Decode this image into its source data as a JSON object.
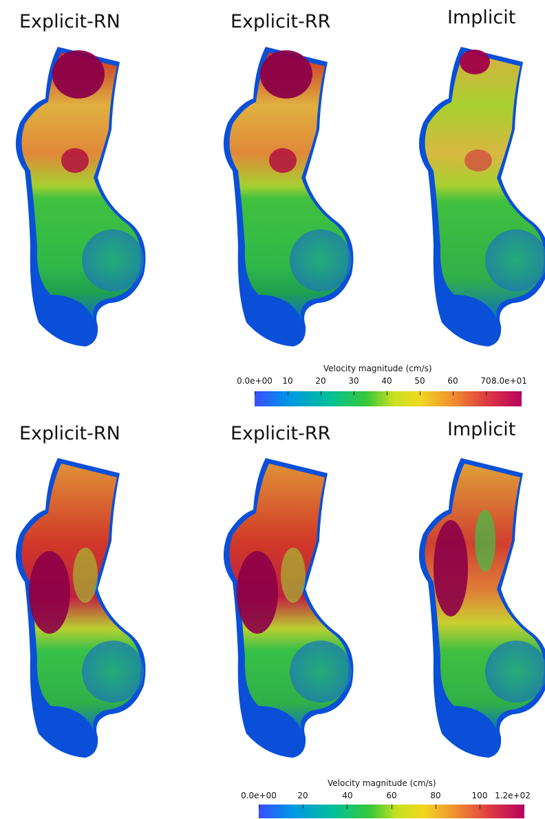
{
  "rows": [
    {
      "panels": [
        {
          "title": "Explicit-RN"
        },
        {
          "title": "Explicit-RR"
        },
        {
          "title": "Implicit"
        }
      ],
      "colorbar": {
        "title": "Velocity magnitude (cm/s)",
        "ticks": [
          "0.0e+00",
          "10",
          "20",
          "30",
          "40",
          "50",
          "60",
          "70",
          "8.0e+01"
        ],
        "min": 0,
        "max": 80
      }
    },
    {
      "panels": [
        {
          "title": "Explicit-RN"
        },
        {
          "title": "Explicit-RR"
        },
        {
          "title": "Implicit"
        }
      ],
      "colorbar": {
        "title": "Velocity magnitude (cm/s)",
        "ticks": [
          "0.0e+00",
          "20",
          "40",
          "60",
          "80",
          "100",
          "1.2e+02"
        ],
        "min": 0,
        "max": 120
      }
    }
  ],
  "colormap": [
    "#3050ff",
    "#00a0e0",
    "#00c090",
    "#30c030",
    "#a0d020",
    "#f0e020",
    "#f0a030",
    "#e05030",
    "#c81850",
    "#900048"
  ]
}
